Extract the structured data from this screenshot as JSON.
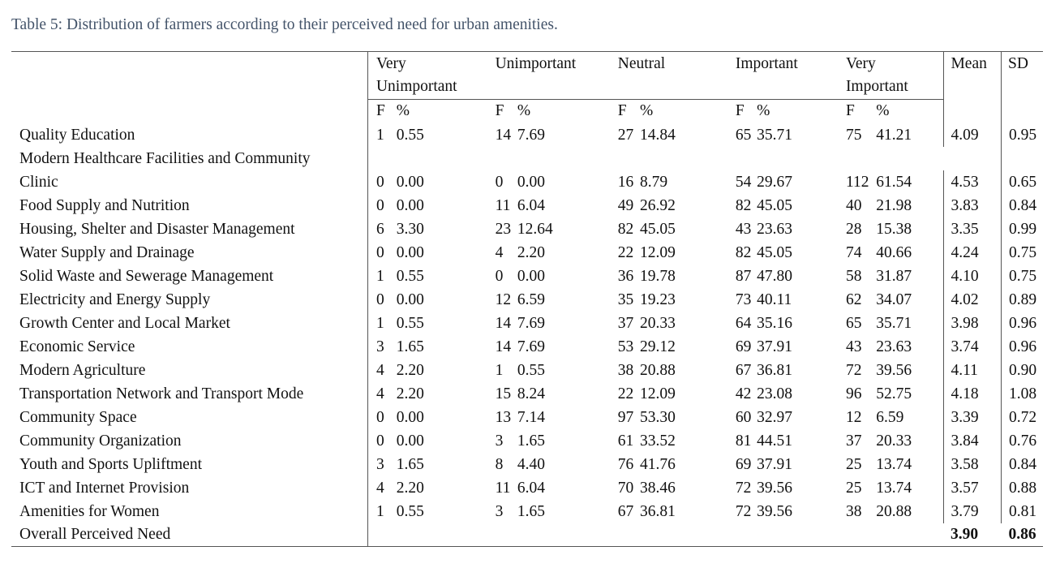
{
  "caption": "Table 5: Distribution of farmers according to their perceived need for urban amenities.",
  "header": {
    "categories": [
      {
        "line1": "Very",
        "line2": "Unimportant"
      },
      {
        "line1": "Unimportant",
        "line2": ""
      },
      {
        "line1": "Neutral",
        "line2": ""
      },
      {
        "line1": "Important",
        "line2": ""
      },
      {
        "line1": "Very",
        "line2": "Important"
      }
    ],
    "f_label": "F",
    "pct_label": "%",
    "mean_label": "Mean",
    "sd_label": "SD"
  },
  "rows": [
    {
      "label": "Quality Education",
      "vals": [
        "1",
        "0.55",
        "14",
        "7.69",
        "27",
        "14.84",
        "65",
        "35.71",
        "75",
        "41.21"
      ],
      "mean": "4.09",
      "sd": "0.95"
    },
    {
      "label_line1": "Modern Healthcare Facilities and Community",
      "label": "Clinic",
      "vals": [
        "0",
        "0.00",
        "0",
        "0.00",
        "16",
        "8.79",
        "54",
        "29.67",
        "112",
        "61.54"
      ],
      "mean": "4.53",
      "sd": "0.65"
    },
    {
      "label": "Food Supply and Nutrition",
      "vals": [
        "0",
        "0.00",
        "11",
        "6.04",
        "49",
        "26.92",
        "82",
        "45.05",
        "40",
        "21.98"
      ],
      "mean": "3.83",
      "sd": "0.84"
    },
    {
      "label": "Housing, Shelter and Disaster Management",
      "vals": [
        "6",
        "3.30",
        "23",
        "12.64",
        "82",
        "45.05",
        "43",
        "23.63",
        "28",
        "15.38"
      ],
      "mean": "3.35",
      "sd": "0.99"
    },
    {
      "label": "Water Supply and Drainage",
      "vals": [
        "0",
        "0.00",
        "4",
        "2.20",
        "22",
        "12.09",
        "82",
        "45.05",
        "74",
        "40.66"
      ],
      "mean": "4.24",
      "sd": "0.75"
    },
    {
      "label": "Solid Waste and Sewerage Management",
      "vals": [
        "1",
        "0.55",
        "0",
        "0.00",
        "36",
        "19.78",
        "87",
        "47.80",
        "58",
        "31.87"
      ],
      "mean": "4.10",
      "sd": "0.75"
    },
    {
      "label": "Electricity and Energy Supply",
      "vals": [
        "0",
        "0.00",
        "12",
        "6.59",
        "35",
        "19.23",
        "73",
        "40.11",
        "62",
        "34.07"
      ],
      "mean": "4.02",
      "sd": "0.89"
    },
    {
      "label": "Growth Center and Local Market",
      "vals": [
        "1",
        "0.55",
        "14",
        "7.69",
        "37",
        "20.33",
        "64",
        "35.16",
        "65",
        "35.71"
      ],
      "mean": "3.98",
      "sd": "0.96"
    },
    {
      "label": "Economic Service",
      "vals": [
        "3",
        "1.65",
        "14",
        "7.69",
        "53",
        "29.12",
        "69",
        "37.91",
        "43",
        "23.63"
      ],
      "mean": "3.74",
      "sd": "0.96"
    },
    {
      "label": "Modern Agriculture",
      "vals": [
        "4",
        "2.20",
        "1",
        "0.55",
        "38",
        "20.88",
        "67",
        "36.81",
        "72",
        "39.56"
      ],
      "mean": "4.11",
      "sd": "0.90"
    },
    {
      "label": "Transportation Network and Transport Mode",
      "vals": [
        "4",
        "2.20",
        "15",
        "8.24",
        "22",
        "12.09",
        "42",
        "23.08",
        "96",
        "52.75"
      ],
      "mean": "4.18",
      "sd": "1.08"
    },
    {
      "label": "Community Space",
      "vals": [
        "0",
        "0.00",
        "13",
        "7.14",
        "97",
        "53.30",
        "60",
        "32.97",
        "12",
        "6.59"
      ],
      "mean": "3.39",
      "sd": "0.72"
    },
    {
      "label": "Community Organization",
      "vals": [
        "0",
        "0.00",
        "3",
        "1.65",
        "61",
        "33.52",
        "81",
        "44.51",
        "37",
        "20.33"
      ],
      "mean": "3.84",
      "sd": "0.76"
    },
    {
      "label": "Youth and Sports Upliftment",
      "vals": [
        "3",
        "1.65",
        "8",
        "4.40",
        "76",
        "41.76",
        "69",
        "37.91",
        "25",
        "13.74"
      ],
      "mean": "3.58",
      "sd": "0.84"
    },
    {
      "label": "ICT and Internet Provision",
      "vals": [
        "4",
        "2.20",
        "11",
        "6.04",
        "70",
        "38.46",
        "72",
        "39.56",
        "25",
        "13.74"
      ],
      "mean": "3.57",
      "sd": "0.88"
    },
    {
      "label": "Amenities for Women",
      "vals": [
        "1",
        "0.55",
        "3",
        "1.65",
        "67",
        "36.81",
        "72",
        "39.56",
        "38",
        "20.88"
      ],
      "mean": "3.79",
      "sd": "0.81"
    }
  ],
  "overall": {
    "label": "Overall Perceived Need",
    "mean": "3.90",
    "sd": "0.86"
  }
}
